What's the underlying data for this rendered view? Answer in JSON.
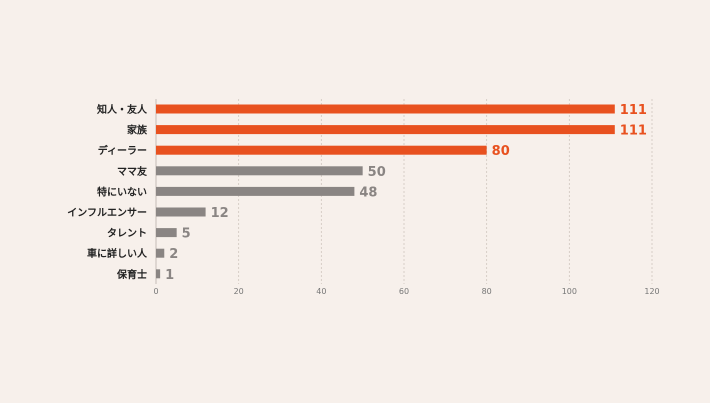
{
  "chart_data": {
    "type": "bar",
    "orientation": "horizontal",
    "categories": [
      "知人・友人",
      "家族",
      "ディーラー",
      "ママ友",
      "特にいない",
      "インフルエンサー",
      "タレント",
      "車に詳しい人",
      "保育士"
    ],
    "values": [
      111,
      111,
      80,
      50,
      48,
      12,
      5,
      2,
      1
    ],
    "value_labels": [
      "111",
      "111",
      "80",
      "50",
      "48",
      "12",
      "5",
      "2",
      "1"
    ],
    "highlighted": [
      true,
      true,
      true,
      false,
      false,
      false,
      false,
      false,
      false
    ],
    "xlim": [
      0,
      120
    ],
    "xticks": [
      "0",
      "20",
      "40",
      "60",
      "80",
      "100",
      "120"
    ],
    "grid": true,
    "title": "",
    "xlabel": "",
    "ylabel": ""
  },
  "colors": {
    "highlight": "#e8511f",
    "normal": "#8a8583",
    "background": "#f7f0eb",
    "grid": "#cfc6bf"
  }
}
